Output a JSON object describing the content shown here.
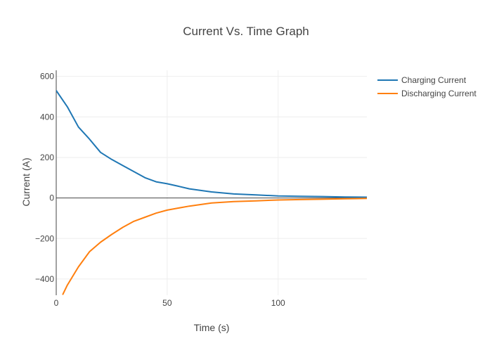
{
  "chart_data": {
    "type": "line",
    "title": "Current Vs. Time Graph",
    "xlabel": "Time (s)",
    "ylabel": "Current (A)",
    "xlim": [
      0,
      140
    ],
    "ylim": [
      -480,
      630
    ],
    "xticks": [
      0,
      50,
      100
    ],
    "xtick_labels": [
      "0",
      "50",
      "100"
    ],
    "yticks": [
      -400,
      -200,
      0,
      200,
      400,
      600
    ],
    "ytick_labels": [
      "−400",
      "−200",
      "0",
      "200",
      "400",
      "600"
    ],
    "grid": true,
    "legend_position": "top-right",
    "series": [
      {
        "name": "Charging Current",
        "color": "#1f77b4",
        "x": [
          0,
          5,
          10,
          15,
          20,
          25,
          30,
          35,
          40,
          45,
          50,
          55,
          60,
          70,
          80,
          90,
          100,
          110,
          120,
          130,
          140
        ],
        "y": [
          530,
          450,
          350,
          290,
          225,
          190,
          160,
          130,
          100,
          80,
          70,
          58,
          45,
          30,
          20,
          15,
          10,
          8,
          7,
          5,
          4
        ]
      },
      {
        "name": "Discharging Current",
        "color": "#ff7f0e",
        "x": [
          3,
          5,
          10,
          15,
          20,
          25,
          30,
          35,
          40,
          45,
          50,
          55,
          60,
          70,
          80,
          90,
          100,
          110,
          120,
          130,
          140
        ],
        "y": [
          -475,
          -430,
          -340,
          -265,
          -218,
          -180,
          -145,
          -115,
          -95,
          -75,
          -60,
          -50,
          -40,
          -25,
          -18,
          -14,
          -10,
          -8,
          -6,
          -4,
          -2
        ]
      }
    ]
  }
}
